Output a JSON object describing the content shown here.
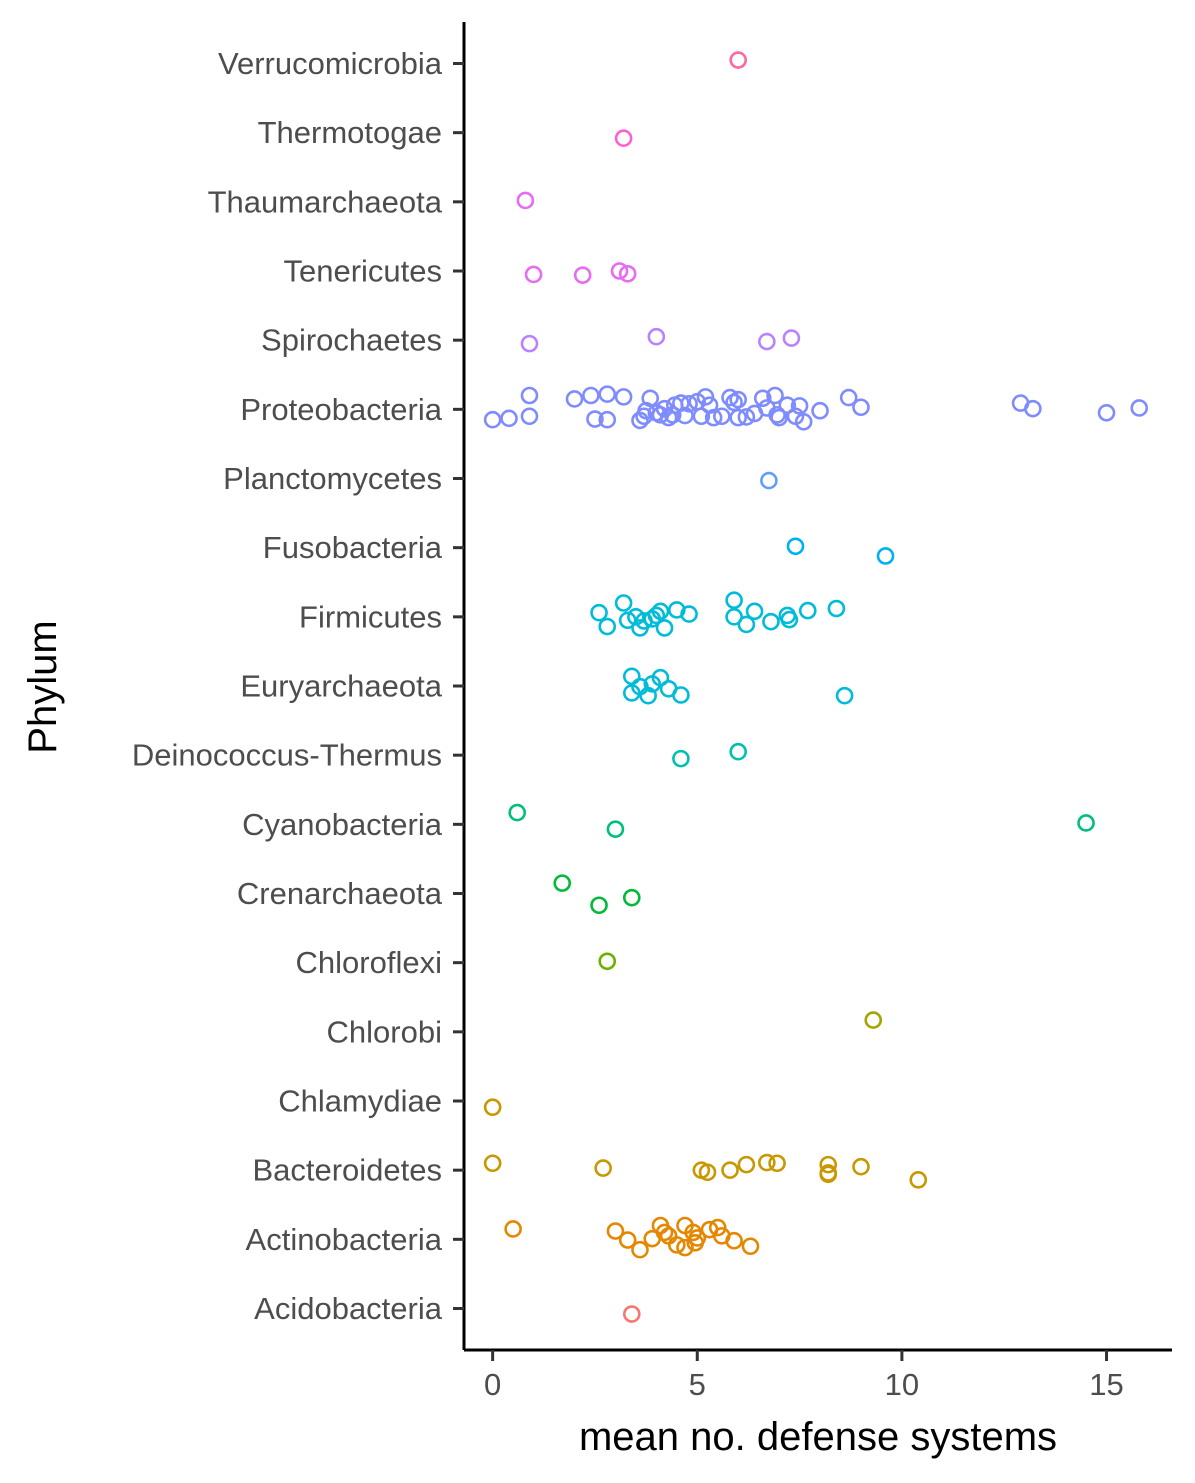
{
  "chart_data": {
    "type": "scatter",
    "xlabel": "mean no. defense systems",
    "ylabel": "Phylum",
    "xlim": [
      -0.7,
      16.6
    ],
    "x_ticks": [
      0,
      5,
      10,
      15
    ],
    "categories": [
      "Acidobacteria",
      "Actinobacteria",
      "Bacteroidetes",
      "Chlamydiae",
      "Chlorobi",
      "Chloroflexi",
      "Crenarchaeota",
      "Cyanobacteria",
      "Deinococcus-Thermus",
      "Euryarchaeota",
      "Firmicutes",
      "Fusobacteria",
      "Planctomycetes",
      "Proteobacteria",
      "Spirochaetes",
      "Tenericutes",
      "Thaumarchaeota",
      "Thermotogae",
      "Verrucomicrobia"
    ],
    "colors": [
      "#F8766D",
      "#E58700",
      "#C99800",
      "#C99800",
      "#A3A500",
      "#6BB100",
      "#00BA38",
      "#00BF7D",
      "#00C0AF",
      "#00BCD8",
      "#00BCD8",
      "#00B0F6",
      "#619CFF",
      "#7F8CFF",
      "#B983FF",
      "#E76BF3",
      "#E76BF3",
      "#FD61D1",
      "#FF67A4"
    ],
    "grid": false,
    "legend": "none",
    "points": [
      {
        "phylum": "Acidobacteria",
        "x": 3.4,
        "jitter": -0.08
      },
      {
        "phylum": "Actinobacteria",
        "x": 0.5,
        "jitter": 0.15
      },
      {
        "phylum": "Actinobacteria",
        "x": 3.0,
        "jitter": 0.12
      },
      {
        "phylum": "Actinobacteria",
        "x": 3.3,
        "jitter": -0.01
      },
      {
        "phylum": "Actinobacteria",
        "x": 3.6,
        "jitter": -0.15
      },
      {
        "phylum": "Actinobacteria",
        "x": 3.9,
        "jitter": 0.01
      },
      {
        "phylum": "Actinobacteria",
        "x": 4.1,
        "jitter": 0.2
      },
      {
        "phylum": "Actinobacteria",
        "x": 4.2,
        "jitter": 0.1
      },
      {
        "phylum": "Actinobacteria",
        "x": 4.3,
        "jitter": 0.05
      },
      {
        "phylum": "Actinobacteria",
        "x": 4.5,
        "jitter": -0.08
      },
      {
        "phylum": "Actinobacteria",
        "x": 4.7,
        "jitter": 0.2
      },
      {
        "phylum": "Actinobacteria",
        "x": 4.7,
        "jitter": -0.12
      },
      {
        "phylum": "Actinobacteria",
        "x": 4.9,
        "jitter": 0.1
      },
      {
        "phylum": "Actinobacteria",
        "x": 4.95,
        "jitter": -0.05
      },
      {
        "phylum": "Actinobacteria",
        "x": 5.0,
        "jitter": 0.02
      },
      {
        "phylum": "Actinobacteria",
        "x": 5.3,
        "jitter": 0.14
      },
      {
        "phylum": "Actinobacteria",
        "x": 5.5,
        "jitter": 0.17
      },
      {
        "phylum": "Actinobacteria",
        "x": 5.6,
        "jitter": 0.05
      },
      {
        "phylum": "Actinobacteria",
        "x": 5.9,
        "jitter": -0.02
      },
      {
        "phylum": "Actinobacteria",
        "x": 6.3,
        "jitter": -0.1
      },
      {
        "phylum": "Bacteroidetes",
        "x": 0.0,
        "jitter": 0.1
      },
      {
        "phylum": "Bacteroidetes",
        "x": 2.7,
        "jitter": 0.03
      },
      {
        "phylum": "Bacteroidetes",
        "x": 5.1,
        "jitter": 0.0
      },
      {
        "phylum": "Bacteroidetes",
        "x": 5.25,
        "jitter": -0.03
      },
      {
        "phylum": "Bacteroidetes",
        "x": 5.8,
        "jitter": 0.0
      },
      {
        "phylum": "Bacteroidetes",
        "x": 6.2,
        "jitter": 0.08
      },
      {
        "phylum": "Bacteroidetes",
        "x": 6.7,
        "jitter": 0.11
      },
      {
        "phylum": "Bacteroidetes",
        "x": 6.95,
        "jitter": 0.1
      },
      {
        "phylum": "Bacteroidetes",
        "x": 8.2,
        "jitter": 0.08
      },
      {
        "phylum": "Bacteroidetes",
        "x": 8.2,
        "jitter": -0.04
      },
      {
        "phylum": "Bacteroidetes",
        "x": 8.2,
        "jitter": -0.06
      },
      {
        "phylum": "Bacteroidetes",
        "x": 9.0,
        "jitter": 0.05
      },
      {
        "phylum": "Bacteroidetes",
        "x": 10.4,
        "jitter": -0.14
      },
      {
        "phylum": "Chlamydiae",
        "x": 0.0,
        "jitter": -0.09
      },
      {
        "phylum": "Chlorobi",
        "x": 9.3,
        "jitter": 0.17
      },
      {
        "phylum": "Chloroflexi",
        "x": 2.8,
        "jitter": 0.02
      },
      {
        "phylum": "Crenarchaeota",
        "x": 1.7,
        "jitter": 0.15
      },
      {
        "phylum": "Crenarchaeota",
        "x": 2.6,
        "jitter": -0.17
      },
      {
        "phylum": "Crenarchaeota",
        "x": 3.4,
        "jitter": -0.06
      },
      {
        "phylum": "Cyanobacteria",
        "x": 0.6,
        "jitter": 0.17
      },
      {
        "phylum": "Cyanobacteria",
        "x": 3.0,
        "jitter": -0.07
      },
      {
        "phylum": "Cyanobacteria",
        "x": 14.5,
        "jitter": 0.02
      },
      {
        "phylum": "Deinococcus-Thermus",
        "x": 4.6,
        "jitter": -0.05
      },
      {
        "phylum": "Deinococcus-Thermus",
        "x": 6.0,
        "jitter": 0.05
      },
      {
        "phylum": "Euryarchaeota",
        "x": 3.4,
        "jitter": 0.14
      },
      {
        "phylum": "Euryarchaeota",
        "x": 3.4,
        "jitter": -0.1
      },
      {
        "phylum": "Euryarchaeota",
        "x": 3.6,
        "jitter": -0.01
      },
      {
        "phylum": "Euryarchaeota",
        "x": 3.8,
        "jitter": -0.14
      },
      {
        "phylum": "Euryarchaeota",
        "x": 3.9,
        "jitter": 0.03
      },
      {
        "phylum": "Euryarchaeota",
        "x": 4.1,
        "jitter": 0.12
      },
      {
        "phylum": "Euryarchaeota",
        "x": 4.3,
        "jitter": -0.04
      },
      {
        "phylum": "Euryarchaeota",
        "x": 4.6,
        "jitter": -0.13
      },
      {
        "phylum": "Euryarchaeota",
        "x": 8.6,
        "jitter": -0.14
      },
      {
        "phylum": "Firmicutes",
        "x": 2.6,
        "jitter": 0.06
      },
      {
        "phylum": "Firmicutes",
        "x": 2.8,
        "jitter": -0.14
      },
      {
        "phylum": "Firmicutes",
        "x": 3.2,
        "jitter": 0.2
      },
      {
        "phylum": "Firmicutes",
        "x": 3.3,
        "jitter": -0.05
      },
      {
        "phylum": "Firmicutes",
        "x": 3.5,
        "jitter": 0.0
      },
      {
        "phylum": "Firmicutes",
        "x": 3.6,
        "jitter": -0.16
      },
      {
        "phylum": "Firmicutes",
        "x": 3.7,
        "jitter": -0.06
      },
      {
        "phylum": "Firmicutes",
        "x": 3.9,
        "jitter": -0.03
      },
      {
        "phylum": "Firmicutes",
        "x": 4.0,
        "jitter": 0.02
      },
      {
        "phylum": "Firmicutes",
        "x": 4.1,
        "jitter": 0.08
      },
      {
        "phylum": "Firmicutes",
        "x": 4.2,
        "jitter": -0.16
      },
      {
        "phylum": "Firmicutes",
        "x": 4.5,
        "jitter": 0.1
      },
      {
        "phylum": "Firmicutes",
        "x": 4.8,
        "jitter": 0.04
      },
      {
        "phylum": "Firmicutes",
        "x": 5.9,
        "jitter": 0.24
      },
      {
        "phylum": "Firmicutes",
        "x": 5.9,
        "jitter": 0.0
      },
      {
        "phylum": "Firmicutes",
        "x": 6.2,
        "jitter": -0.11
      },
      {
        "phylum": "Firmicutes",
        "x": 6.4,
        "jitter": 0.08
      },
      {
        "phylum": "Firmicutes",
        "x": 6.8,
        "jitter": -0.07
      },
      {
        "phylum": "Firmicutes",
        "x": 7.2,
        "jitter": 0.02
      },
      {
        "phylum": "Firmicutes",
        "x": 7.25,
        "jitter": -0.04
      },
      {
        "phylum": "Firmicutes",
        "x": 7.7,
        "jitter": 0.09
      },
      {
        "phylum": "Firmicutes",
        "x": 8.4,
        "jitter": 0.12
      },
      {
        "phylum": "Fusobacteria",
        "x": 7.4,
        "jitter": 0.02
      },
      {
        "phylum": "Fusobacteria",
        "x": 9.6,
        "jitter": -0.12
      },
      {
        "phylum": "Planctomycetes",
        "x": 6.75,
        "jitter": -0.03
      },
      {
        "phylum": "Proteobacteria",
        "x": 0.0,
        "jitter": -0.15
      },
      {
        "phylum": "Proteobacteria",
        "x": 0.4,
        "jitter": -0.13
      },
      {
        "phylum": "Proteobacteria",
        "x": 0.9,
        "jitter": 0.2
      },
      {
        "phylum": "Proteobacteria",
        "x": 0.9,
        "jitter": -0.1
      },
      {
        "phylum": "Proteobacteria",
        "x": 2.0,
        "jitter": 0.15
      },
      {
        "phylum": "Proteobacteria",
        "x": 2.4,
        "jitter": 0.2
      },
      {
        "phylum": "Proteobacteria",
        "x": 2.5,
        "jitter": -0.14
      },
      {
        "phylum": "Proteobacteria",
        "x": 2.8,
        "jitter": 0.22
      },
      {
        "phylum": "Proteobacteria",
        "x": 2.8,
        "jitter": -0.15
      },
      {
        "phylum": "Proteobacteria",
        "x": 3.2,
        "jitter": 0.18
      },
      {
        "phylum": "Proteobacteria",
        "x": 3.6,
        "jitter": -0.16
      },
      {
        "phylum": "Proteobacteria",
        "x": 3.7,
        "jitter": -0.1
      },
      {
        "phylum": "Proteobacteria",
        "x": 3.75,
        "jitter": -0.02
      },
      {
        "phylum": "Proteobacteria",
        "x": 3.85,
        "jitter": 0.16
      },
      {
        "phylum": "Proteobacteria",
        "x": 4.0,
        "jitter": -0.05
      },
      {
        "phylum": "Proteobacteria",
        "x": 4.1,
        "jitter": -0.08
      },
      {
        "phylum": "Proteobacteria",
        "x": 4.2,
        "jitter": 0.01
      },
      {
        "phylum": "Proteobacteria",
        "x": 4.3,
        "jitter": -0.12
      },
      {
        "phylum": "Proteobacteria",
        "x": 4.4,
        "jitter": -0.08
      },
      {
        "phylum": "Proteobacteria",
        "x": 4.45,
        "jitter": 0.06
      },
      {
        "phylum": "Proteobacteria",
        "x": 4.6,
        "jitter": 0.09
      },
      {
        "phylum": "Proteobacteria",
        "x": 4.7,
        "jitter": -0.09
      },
      {
        "phylum": "Proteobacteria",
        "x": 4.8,
        "jitter": 0.08
      },
      {
        "phylum": "Proteobacteria",
        "x": 5.0,
        "jitter": 0.11
      },
      {
        "phylum": "Proteobacteria",
        "x": 5.1,
        "jitter": -0.1
      },
      {
        "phylum": "Proteobacteria",
        "x": 5.2,
        "jitter": 0.18
      },
      {
        "phylum": "Proteobacteria",
        "x": 5.3,
        "jitter": 0.06
      },
      {
        "phylum": "Proteobacteria",
        "x": 5.4,
        "jitter": -0.12
      },
      {
        "phylum": "Proteobacteria",
        "x": 5.6,
        "jitter": -0.1
      },
      {
        "phylum": "Proteobacteria",
        "x": 5.8,
        "jitter": 0.17
      },
      {
        "phylum": "Proteobacteria",
        "x": 5.9,
        "jitter": 0.1
      },
      {
        "phylum": "Proteobacteria",
        "x": 6.0,
        "jitter": 0.14
      },
      {
        "phylum": "Proteobacteria",
        "x": 6.0,
        "jitter": -0.12
      },
      {
        "phylum": "Proteobacteria",
        "x": 6.2,
        "jitter": -0.11
      },
      {
        "phylum": "Proteobacteria",
        "x": 6.4,
        "jitter": -0.06
      },
      {
        "phylum": "Proteobacteria",
        "x": 6.6,
        "jitter": 0.16
      },
      {
        "phylum": "Proteobacteria",
        "x": 6.7,
        "jitter": 0.02
      },
      {
        "phylum": "Proteobacteria",
        "x": 6.9,
        "jitter": 0.2
      },
      {
        "phylum": "Proteobacteria",
        "x": 6.95,
        "jitter": -0.08
      },
      {
        "phylum": "Proteobacteria",
        "x": 7.0,
        "jitter": -0.12
      },
      {
        "phylum": "Proteobacteria",
        "x": 7.2,
        "jitter": 0.06
      },
      {
        "phylum": "Proteobacteria",
        "x": 7.4,
        "jitter": -0.1
      },
      {
        "phylum": "Proteobacteria",
        "x": 7.5,
        "jitter": 0.05
      },
      {
        "phylum": "Proteobacteria",
        "x": 7.6,
        "jitter": -0.18
      },
      {
        "phylum": "Proteobacteria",
        "x": 8.0,
        "jitter": -0.02
      },
      {
        "phylum": "Proteobacteria",
        "x": 8.7,
        "jitter": 0.17
      },
      {
        "phylum": "Proteobacteria",
        "x": 9.0,
        "jitter": 0.03
      },
      {
        "phylum": "Proteobacteria",
        "x": 12.9,
        "jitter": 0.09
      },
      {
        "phylum": "Proteobacteria",
        "x": 13.2,
        "jitter": 0.01
      },
      {
        "phylum": "Proteobacteria",
        "x": 15.0,
        "jitter": -0.05
      },
      {
        "phylum": "Proteobacteria",
        "x": 15.8,
        "jitter": 0.02
      },
      {
        "phylum": "Spirochaetes",
        "x": 0.9,
        "jitter": -0.05
      },
      {
        "phylum": "Spirochaetes",
        "x": 4.0,
        "jitter": 0.05
      },
      {
        "phylum": "Spirochaetes",
        "x": 6.7,
        "jitter": -0.02
      },
      {
        "phylum": "Spirochaetes",
        "x": 7.3,
        "jitter": 0.03
      },
      {
        "phylum": "Tenericutes",
        "x": 1.0,
        "jitter": -0.05
      },
      {
        "phylum": "Tenericutes",
        "x": 2.2,
        "jitter": -0.06
      },
      {
        "phylum": "Tenericutes",
        "x": 3.1,
        "jitter": 0.0
      },
      {
        "phylum": "Tenericutes",
        "x": 3.3,
        "jitter": -0.04
      },
      {
        "phylum": "Thaumarchaeota",
        "x": 0.8,
        "jitter": 0.02
      },
      {
        "phylum": "Thermotogae",
        "x": 3.2,
        "jitter": -0.08
      },
      {
        "phylum": "Verrucomicrobia",
        "x": 6.0,
        "jitter": 0.05
      }
    ]
  }
}
